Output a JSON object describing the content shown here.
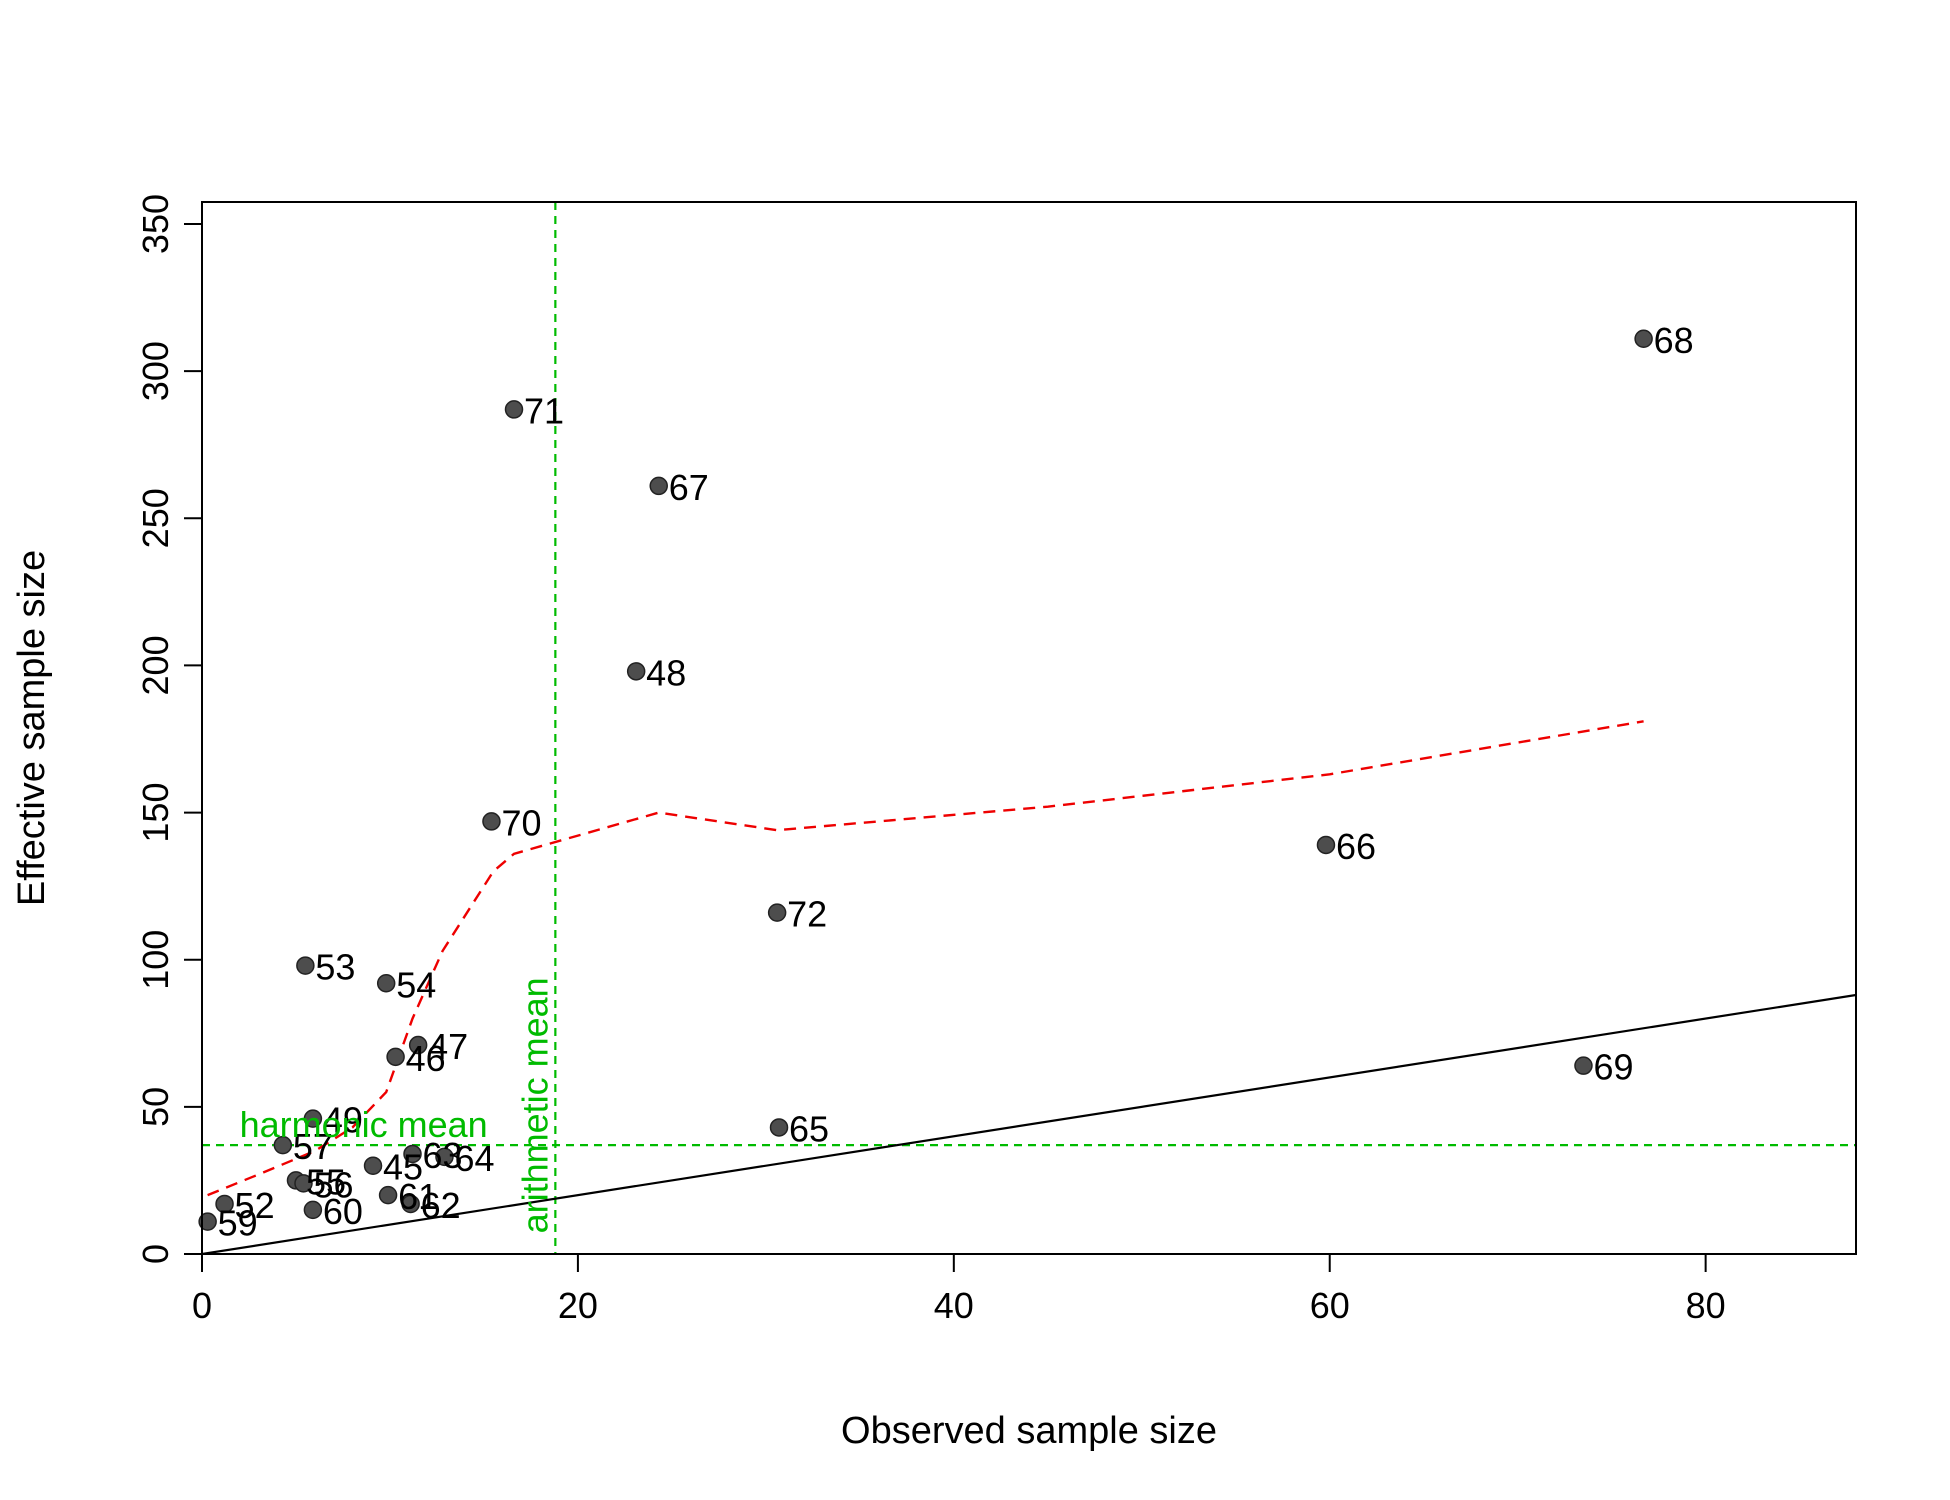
{
  "chart_data": {
    "type": "scatter",
    "title": "",
    "xlabel": "Observed sample size",
    "ylabel": "Effective sample size",
    "xlim": [
      0,
      88
    ],
    "ylim": [
      0,
      350
    ],
    "x_ticks": [
      0,
      20,
      40,
      60,
      80
    ],
    "y_ticks": [
      0,
      50,
      100,
      150,
      200,
      250,
      300,
      350
    ],
    "grid": false,
    "legend": "none",
    "points": [
      {
        "label": "68",
        "x": 76.7,
        "y": 311
      },
      {
        "label": "71",
        "x": 16.6,
        "y": 287
      },
      {
        "label": "67",
        "x": 24.3,
        "y": 261
      },
      {
        "label": "48",
        "x": 23.1,
        "y": 198
      },
      {
        "label": "70",
        "x": 15.4,
        "y": 147
      },
      {
        "label": "66",
        "x": 59.8,
        "y": 139
      },
      {
        "label": "72",
        "x": 30.6,
        "y": 116
      },
      {
        "label": "53",
        "x": 5.5,
        "y": 98
      },
      {
        "label": "54",
        "x": 9.8,
        "y": 92
      },
      {
        "label": "47",
        "x": 11.5,
        "y": 71
      },
      {
        "label": "46",
        "x": 10.3,
        "y": 67
      },
      {
        "label": "69",
        "x": 73.5,
        "y": 64
      },
      {
        "label": "49",
        "x": 5.9,
        "y": 46
      },
      {
        "label": "65",
        "x": 30.7,
        "y": 43
      },
      {
        "label": "57",
        "x": 4.3,
        "y": 37
      },
      {
        "label": "63",
        "x": 11.2,
        "y": 34
      },
      {
        "label": "64",
        "x": 12.9,
        "y": 33
      },
      {
        "label": "45",
        "x": 9.1,
        "y": 30
      },
      {
        "label": "55",
        "x": 5.0,
        "y": 25
      },
      {
        "label": "56",
        "x": 5.4,
        "y": 24
      },
      {
        "label": "61",
        "x": 9.9,
        "y": 20
      },
      {
        "label": "52",
        "x": 1.2,
        "y": 17
      },
      {
        "label": "62",
        "x": 11.1,
        "y": 17
      },
      {
        "label": "60",
        "x": 5.9,
        "y": 15
      },
      {
        "label": "59",
        "x": 0.3,
        "y": 11
      }
    ],
    "lines": [
      {
        "kind": "identity",
        "style": "solid",
        "color": "#000000",
        "x": [
          0,
          88
        ],
        "y": [
          0,
          88
        ]
      },
      {
        "kind": "smooth",
        "style": "dashed",
        "color": "#ee0000",
        "x": [
          0.3,
          3,
          6,
          8,
          9.8,
          11.2,
          12.8,
          15.5,
          16.6,
          24.3,
          30.6,
          45,
          60,
          76.7
        ],
        "y": [
          20,
          27,
          35,
          43,
          55,
          80,
          103,
          130,
          136,
          150,
          144,
          152,
          163,
          181
        ]
      }
    ],
    "reference_lines": {
      "color": "#00bb00",
      "harmonic_mean": {
        "label": "harmonic mean",
        "y": 37
      },
      "arithmetic_mean": {
        "label": "arithmetic mean",
        "x": 18.8
      }
    },
    "colors": {
      "point_fill": "#4d4d4d",
      "point_stroke": "#222222"
    }
  }
}
